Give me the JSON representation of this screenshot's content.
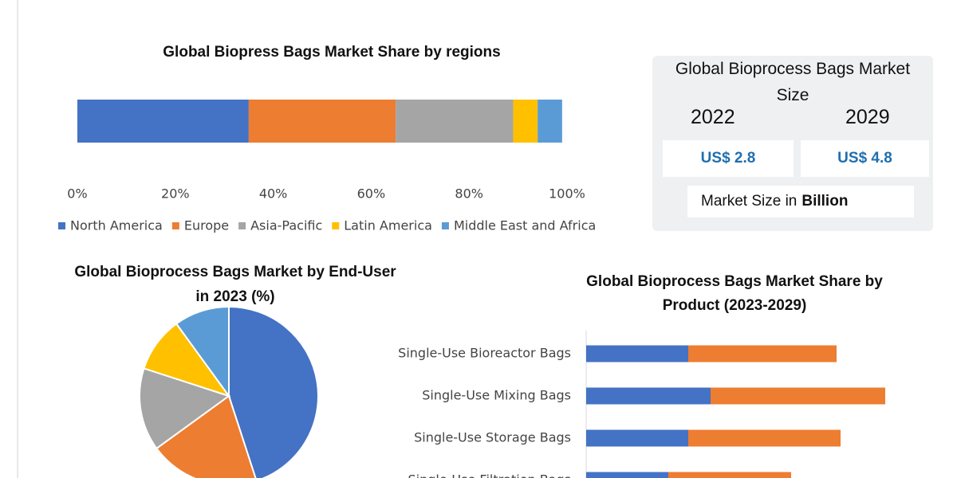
{
  "chart_data": [
    {
      "type": "stacked-bar-h",
      "title": "Global Biopress Bags Market Share by regions",
      "series": [
        {
          "name": "North America",
          "color": "#4472c4",
          "values": [
            35
          ]
        },
        {
          "name": "Europe",
          "color": "#ed7d31",
          "values": [
            30
          ]
        },
        {
          "name": "Asia-Pacific",
          "color": "#a5a5a5",
          "values": [
            24
          ]
        },
        {
          "name": "Latin America",
          "color": "#ffc000",
          "values": [
            5
          ]
        },
        {
          "name": "Middle East and Africa",
          "color": "#5b9bd5",
          "values": [
            5
          ]
        }
      ],
      "xlim": [
        0,
        100
      ],
      "xticks": [
        {
          "value": 0,
          "label": "0%"
        },
        {
          "value": 20,
          "label": "20%"
        },
        {
          "value": 40,
          "label": "40%"
        },
        {
          "value": 60,
          "label": "60%"
        },
        {
          "value": 80,
          "label": "80%"
        },
        {
          "value": 100,
          "label": "100%"
        }
      ],
      "legend": "bottom"
    },
    {
      "type": "pie",
      "title": "Global Bioprocess Bags Market by End-User in 2023 (%)",
      "values": [
        45,
        20,
        15,
        10,
        10
      ],
      "colors": [
        "#4472c4",
        "#ed7d31",
        "#a5a5a5",
        "#ffc000",
        "#5b9bd5"
      ]
    },
    {
      "type": "stacked-bar-h",
      "title": "Global Bioprocess Bags Market Share by Product (2023-2029)",
      "categories": [
        "Single-Use Bioreactor Bags",
        "Single-Use Mixing Bags",
        "Single-Use Storage Bags",
        "Single-Use Filtration Bags"
      ],
      "series": [
        {
          "color": "#4472c4",
          "values": [
            128,
            156,
            128,
            103
          ]
        },
        {
          "color": "#ed7d31",
          "values": [
            186,
            219,
            191,
            154
          ]
        }
      ],
      "xlim": [
        0,
        400
      ]
    }
  ],
  "market_size": {
    "title": "Global Bioprocess Bags Market Size",
    "years": [
      "2022",
      "2029"
    ],
    "values": [
      "US$ 2.8",
      "US$ 4.8"
    ],
    "note": "Market Size in",
    "note_unit": "Billion"
  }
}
